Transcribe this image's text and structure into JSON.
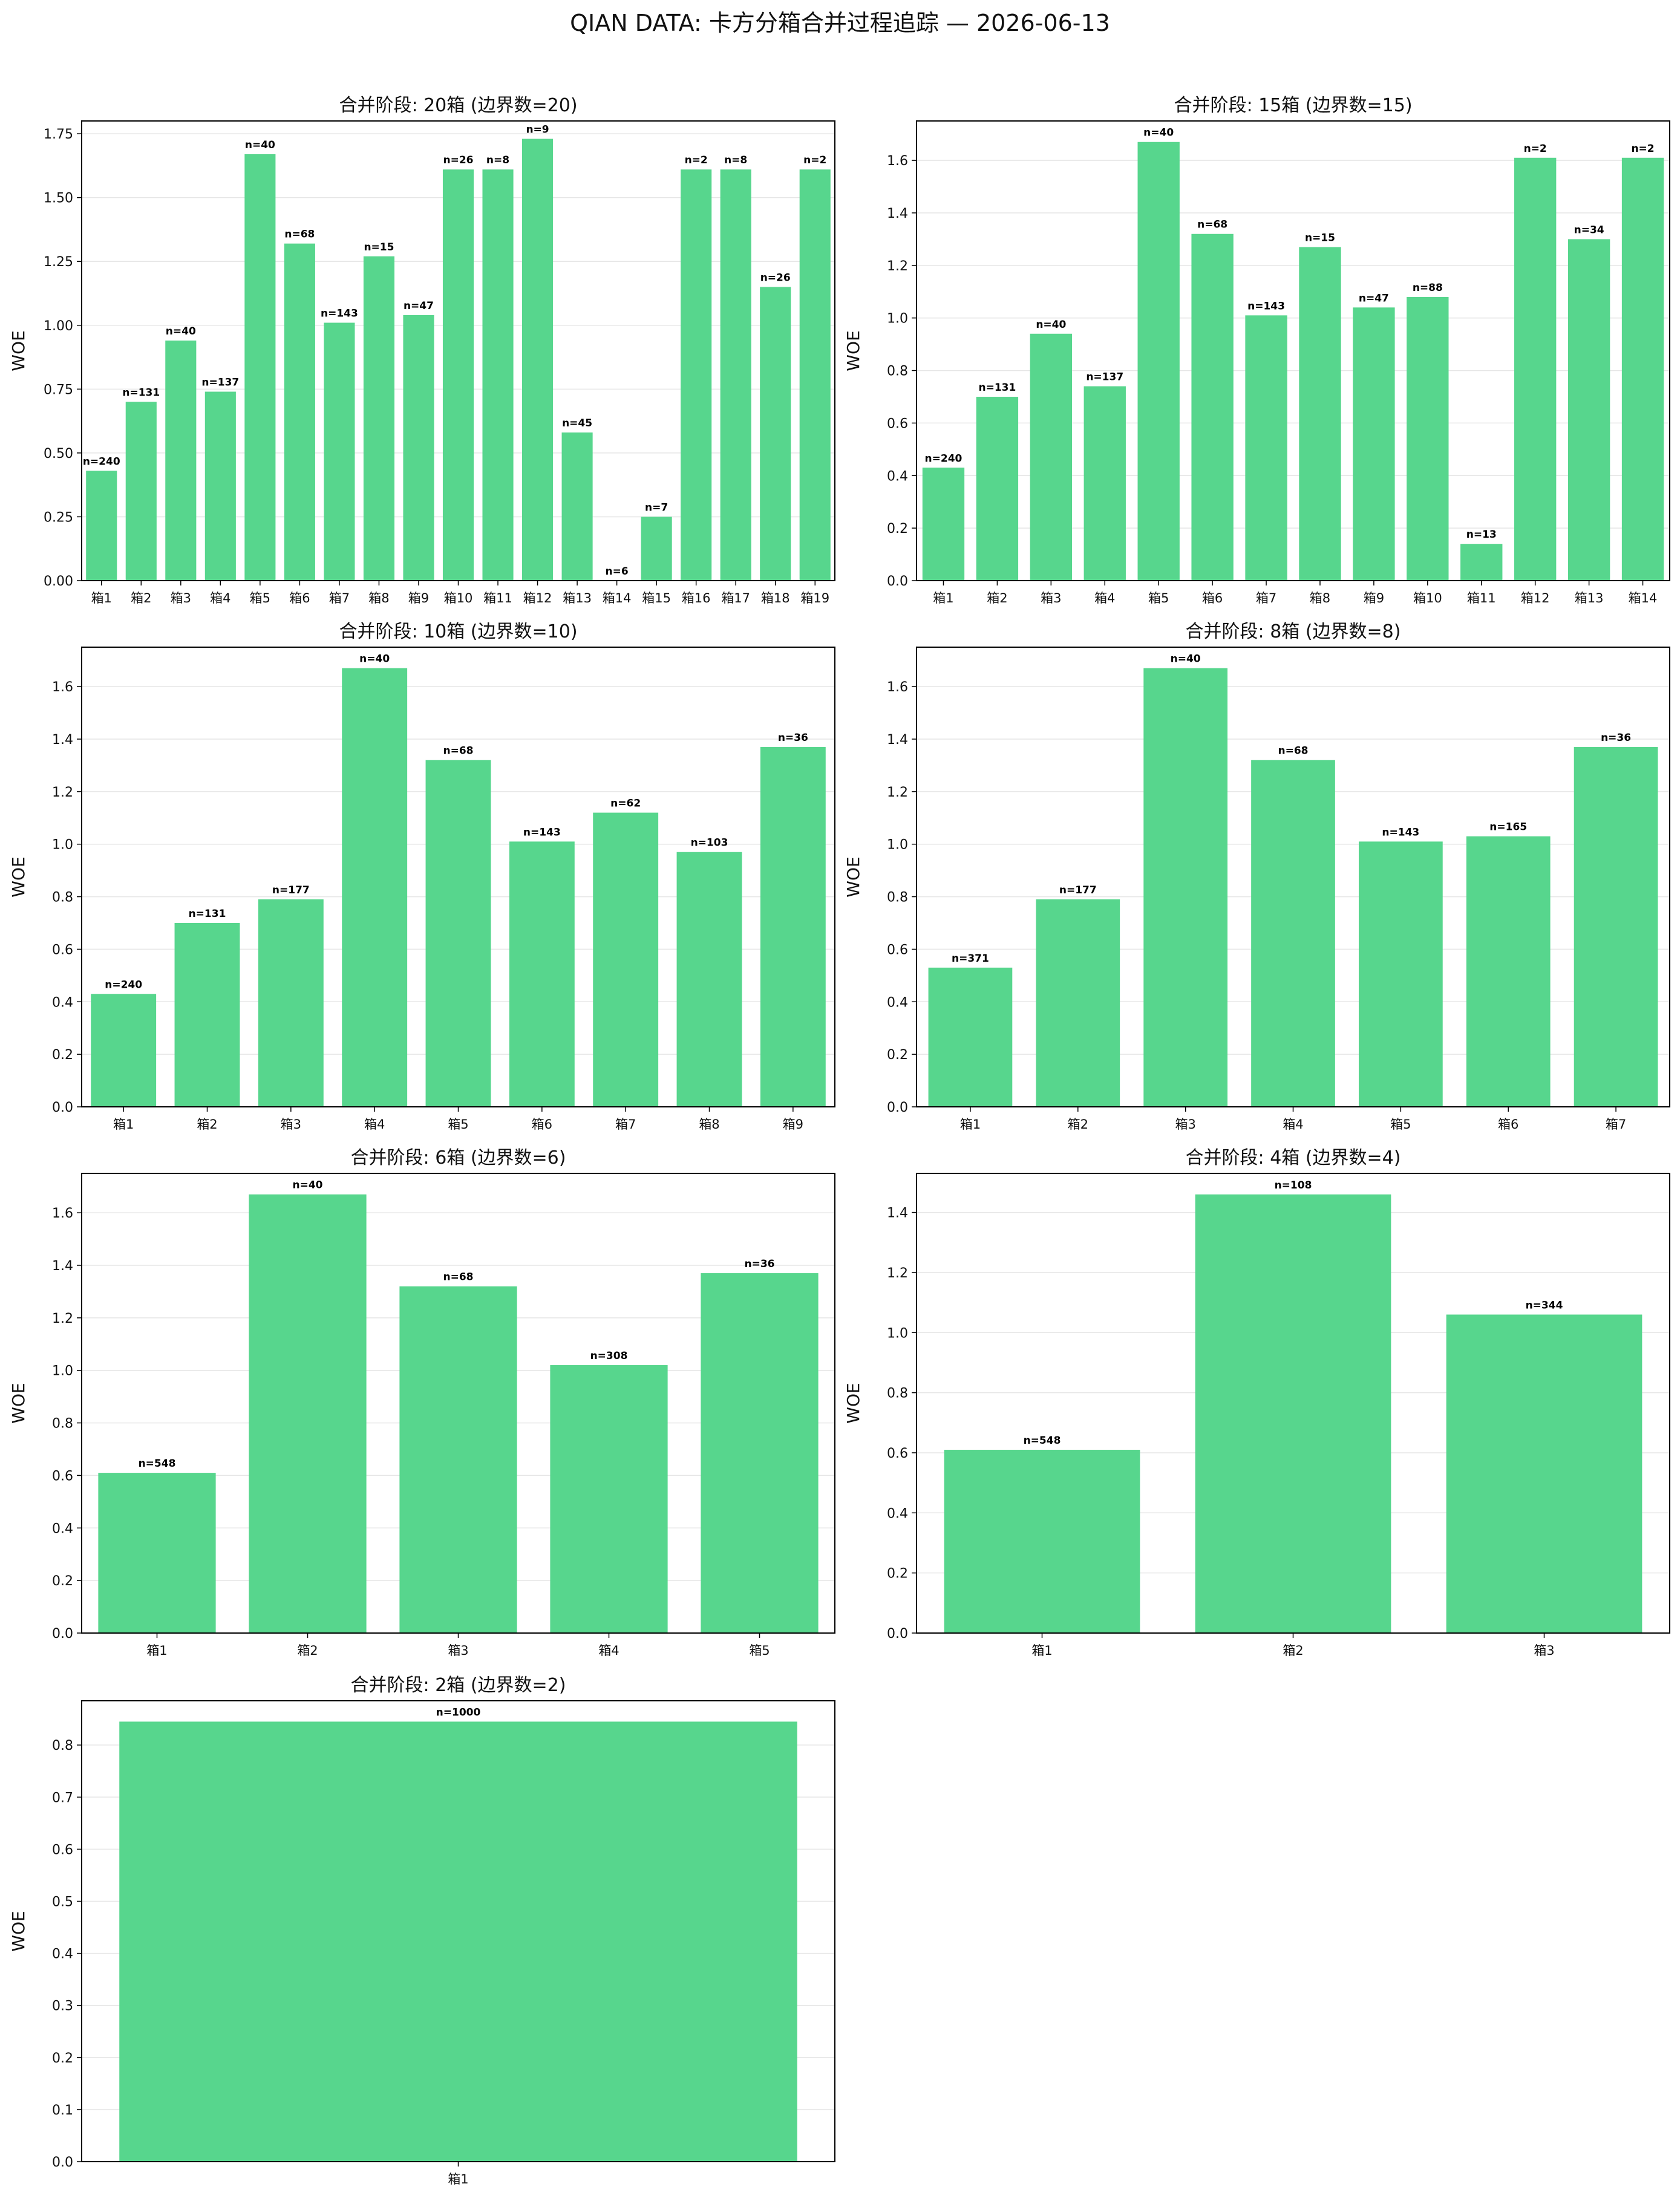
{
  "figure": {
    "title": "QIAN DATA: 卡方分箱合并过程追踪 — 2026-06-13",
    "bar_color": "#57d68d",
    "axis_color": "#000000",
    "grid_color": "#e6e6e6"
  },
  "chart_data": [
    {
      "type": "bar",
      "title": "合并阶段: 20箱 (边界数=20)",
      "ylabel": "WOE",
      "ylim": [
        0,
        1.8
      ],
      "yticks": [
        0.0,
        0.25,
        0.5,
        0.75,
        1.0,
        1.25,
        1.5,
        1.75
      ],
      "ytick_labels": [
        "0.00",
        "0.25",
        "0.50",
        "0.75",
        "1.00",
        "1.25",
        "1.50",
        "1.75"
      ],
      "grid": "y",
      "categories": [
        "箱1",
        "箱2",
        "箱3",
        "箱4",
        "箱5",
        "箱6",
        "箱7",
        "箱8",
        "箱9",
        "箱10",
        "箱11",
        "箱12",
        "箱13",
        "箱14",
        "箱15",
        "箱16",
        "箱17",
        "箱18",
        "箱19"
      ],
      "values": [
        0.43,
        0.7,
        0.94,
        0.74,
        1.67,
        1.32,
        1.01,
        1.27,
        1.04,
        1.61,
        1.61,
        1.73,
        0.58,
        0.0,
        0.25,
        1.61,
        1.61,
        1.15,
        1.61
      ],
      "annotations": [
        "n=240",
        "n=131",
        "n=40",
        "n=137",
        "n=40",
        "n=68",
        "n=143",
        "n=15",
        "n=47",
        "n=26",
        "n=8",
        "n=9",
        "n=45",
        "n=6",
        "n=7",
        "n=2",
        "n=8",
        "n=26",
        "n=2"
      ]
    },
    {
      "type": "bar",
      "title": "合并阶段: 15箱 (边界数=15)",
      "ylabel": "WOE",
      "ylim": [
        0,
        1.75
      ],
      "yticks": [
        0.0,
        0.2,
        0.4,
        0.6,
        0.8,
        1.0,
        1.2,
        1.4,
        1.6
      ],
      "ytick_labels": [
        "0.0",
        "0.2",
        "0.4",
        "0.6",
        "0.8",
        "1.0",
        "1.2",
        "1.4",
        "1.6"
      ],
      "grid": "y",
      "categories": [
        "箱1",
        "箱2",
        "箱3",
        "箱4",
        "箱5",
        "箱6",
        "箱7",
        "箱8",
        "箱9",
        "箱10",
        "箱11",
        "箱12",
        "箱13",
        "箱14"
      ],
      "values": [
        0.43,
        0.7,
        0.94,
        0.74,
        1.67,
        1.32,
        1.01,
        1.27,
        1.04,
        1.08,
        0.14,
        1.61,
        1.3,
        1.61
      ],
      "annotations": [
        "n=240",
        "n=131",
        "n=40",
        "n=137",
        "n=40",
        "n=68",
        "n=143",
        "n=15",
        "n=47",
        "n=88",
        "n=13",
        "n=2",
        "n=34",
        "n=2"
      ]
    },
    {
      "type": "bar",
      "title": "合并阶段: 10箱 (边界数=10)",
      "ylabel": "WOE",
      "ylim": [
        0,
        1.75
      ],
      "yticks": [
        0.0,
        0.2,
        0.4,
        0.6,
        0.8,
        1.0,
        1.2,
        1.4,
        1.6
      ],
      "ytick_labels": [
        "0.0",
        "0.2",
        "0.4",
        "0.6",
        "0.8",
        "1.0",
        "1.2",
        "1.4",
        "1.6"
      ],
      "grid": "y",
      "categories": [
        "箱1",
        "箱2",
        "箱3",
        "箱4",
        "箱5",
        "箱6",
        "箱7",
        "箱8",
        "箱9"
      ],
      "values": [
        0.43,
        0.7,
        0.79,
        1.67,
        1.32,
        1.01,
        1.12,
        0.97,
        1.37
      ],
      "annotations": [
        "n=240",
        "n=131",
        "n=177",
        "n=40",
        "n=68",
        "n=143",
        "n=62",
        "n=103",
        "n=36"
      ]
    },
    {
      "type": "bar",
      "title": "合并阶段: 8箱 (边界数=8)",
      "ylabel": "WOE",
      "ylim": [
        0,
        1.75
      ],
      "yticks": [
        0.0,
        0.2,
        0.4,
        0.6,
        0.8,
        1.0,
        1.2,
        1.4,
        1.6
      ],
      "ytick_labels": [
        "0.0",
        "0.2",
        "0.4",
        "0.6",
        "0.8",
        "1.0",
        "1.2",
        "1.4",
        "1.6"
      ],
      "grid": "y",
      "categories": [
        "箱1",
        "箱2",
        "箱3",
        "箱4",
        "箱5",
        "箱6",
        "箱7"
      ],
      "values": [
        0.53,
        0.79,
        1.67,
        1.32,
        1.01,
        1.03,
        1.37
      ],
      "annotations": [
        "n=371",
        "n=177",
        "n=40",
        "n=68",
        "n=143",
        "n=165",
        "n=36"
      ]
    },
    {
      "type": "bar",
      "title": "合并阶段: 6箱 (边界数=6)",
      "ylabel": "WOE",
      "ylim": [
        0,
        1.75
      ],
      "yticks": [
        0.0,
        0.2,
        0.4,
        0.6,
        0.8,
        1.0,
        1.2,
        1.4,
        1.6
      ],
      "ytick_labels": [
        "0.0",
        "0.2",
        "0.4",
        "0.6",
        "0.8",
        "1.0",
        "1.2",
        "1.4",
        "1.6"
      ],
      "grid": "y",
      "categories": [
        "箱1",
        "箱2",
        "箱3",
        "箱4",
        "箱5"
      ],
      "values": [
        0.61,
        1.67,
        1.32,
        1.02,
        1.37
      ],
      "annotations": [
        "n=548",
        "n=40",
        "n=68",
        "n=308",
        "n=36"
      ]
    },
    {
      "type": "bar",
      "title": "合并阶段: 4箱 (边界数=4)",
      "ylabel": "WOE",
      "ylim": [
        0,
        1.53
      ],
      "yticks": [
        0.0,
        0.2,
        0.4,
        0.6,
        0.8,
        1.0,
        1.2,
        1.4
      ],
      "ytick_labels": [
        "0.0",
        "0.2",
        "0.4",
        "0.6",
        "0.8",
        "1.0",
        "1.2",
        "1.4"
      ],
      "grid": "y",
      "categories": [
        "箱1",
        "箱2",
        "箱3"
      ],
      "values": [
        0.61,
        1.46,
        1.06
      ],
      "annotations": [
        "n=548",
        "n=108",
        "n=344"
      ]
    },
    {
      "type": "bar",
      "title": "合并阶段: 2箱 (边界数=2)",
      "ylabel": "WOE",
      "ylim": [
        0,
        0.885
      ],
      "yticks": [
        0.0,
        0.1,
        0.2,
        0.3,
        0.4,
        0.5,
        0.6,
        0.7,
        0.8
      ],
      "ytick_labels": [
        "0.0",
        "0.1",
        "0.2",
        "0.3",
        "0.4",
        "0.5",
        "0.6",
        "0.7",
        "0.8"
      ],
      "grid": "y",
      "categories": [
        "箱1"
      ],
      "values": [
        0.845
      ],
      "annotations": [
        "n=1000"
      ]
    }
  ]
}
